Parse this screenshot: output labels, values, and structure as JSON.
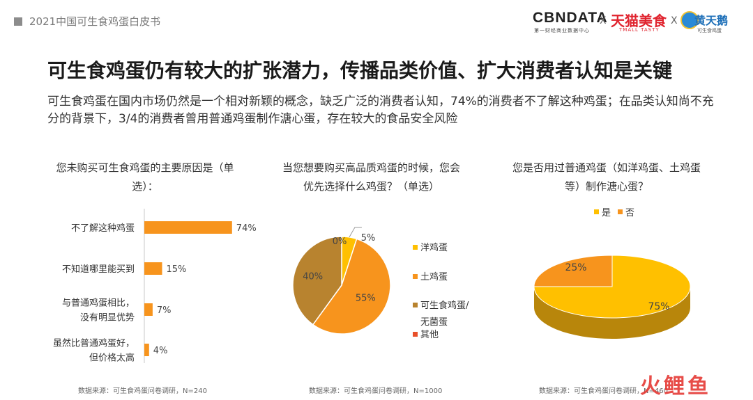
{
  "header": {
    "report_tag": "2021中国可生食鸡蛋白皮书",
    "logos": {
      "cbndata": "CBNDATA",
      "cbndata_sub": "第一财经商业数据中心",
      "separator": "X",
      "tmall": "天猫美食",
      "tmall_sub": "TMALL TASTY",
      "huangtianer": "黄天鹅",
      "huangtianer_sub": "可生食鸡蛋"
    }
  },
  "title": "可生食鸡蛋仍有较大的扩张潜力，传播品类价值、扩大消费者认知是关键",
  "subtitle": "可生食鸡蛋在国内市场仍然是一个相对新颖的概念，缺乏广泛的消费者认知，74%的消费者不了解这种鸡蛋；在品类认知尚不充分的背景下，3/4的消费者曾用普通鸡蛋制作溏心蛋，存在较大的食品安全风险",
  "colors": {
    "orange": "#F7941D",
    "dark_orange": "#E07B1A",
    "brown": "#B8832F",
    "yellow": "#FFC000",
    "dark_yellow": "#B8860B",
    "red": "#E8502A"
  },
  "watermark": "火鲤鱼",
  "chart_data": [
    {
      "type": "bar",
      "orientation": "horizontal",
      "title": "您未购买可生食鸡蛋的主要原因是（单选）：",
      "categories": [
        "不了解这种鸡蛋",
        "不知道哪里能买到",
        "与普通鸡蛋相比，没有明显优势",
        "虽然比普通鸡蛋好，但价格太高"
      ],
      "values": [
        74,
        15,
        7,
        4
      ],
      "value_labels": [
        "74%",
        "15%",
        "7%",
        "4%"
      ],
      "xlim": [
        0,
        100
      ],
      "source": "数据来源：可生食鸡蛋问卷调研，N=240"
    },
    {
      "type": "pie",
      "title": "当您想要购买高品质鸡蛋的时候，您会优先选择什么鸡蛋？（单选）",
      "labels": [
        "洋鸡蛋",
        "土鸡蛋",
        "可生食鸡蛋/无菌蛋",
        "其他"
      ],
      "values": [
        5,
        55,
        40,
        0
      ],
      "value_labels": [
        "5%",
        "55%",
        "40%",
        "0%"
      ],
      "colors": [
        "#FFC000",
        "#F7941D",
        "#B8832F",
        "#E8502A"
      ],
      "legend": "right",
      "source": "数据来源：可生食鸡蛋问卷调研，N=1000"
    },
    {
      "type": "pie",
      "style": "3d",
      "title": "您是否用过普通鸡蛋（如洋鸡蛋、土鸡蛋等）制作溏心蛋？",
      "labels": [
        "是",
        "否"
      ],
      "values": [
        75,
        25
      ],
      "value_labels": [
        "75%",
        "25%"
      ],
      "colors": [
        "#FFC000",
        "#F7941D"
      ],
      "legend": "top",
      "source": "数据来源：可生食鸡蛋问卷调研，N=460"
    }
  ]
}
